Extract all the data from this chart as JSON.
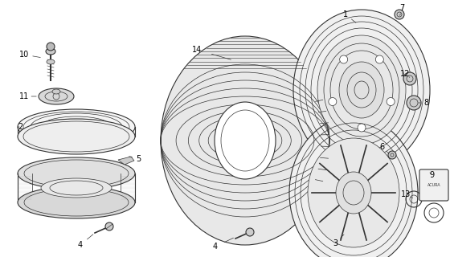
{
  "background_color": "#ffffff",
  "fig_width": 5.6,
  "fig_height": 3.2,
  "dpi": 100,
  "line_color": "#333333",
  "label_color": "#000000",
  "label_fontsize": 7,
  "lw_thin": 0.5,
  "lw_med": 0.8,
  "lw_thick": 1.0
}
